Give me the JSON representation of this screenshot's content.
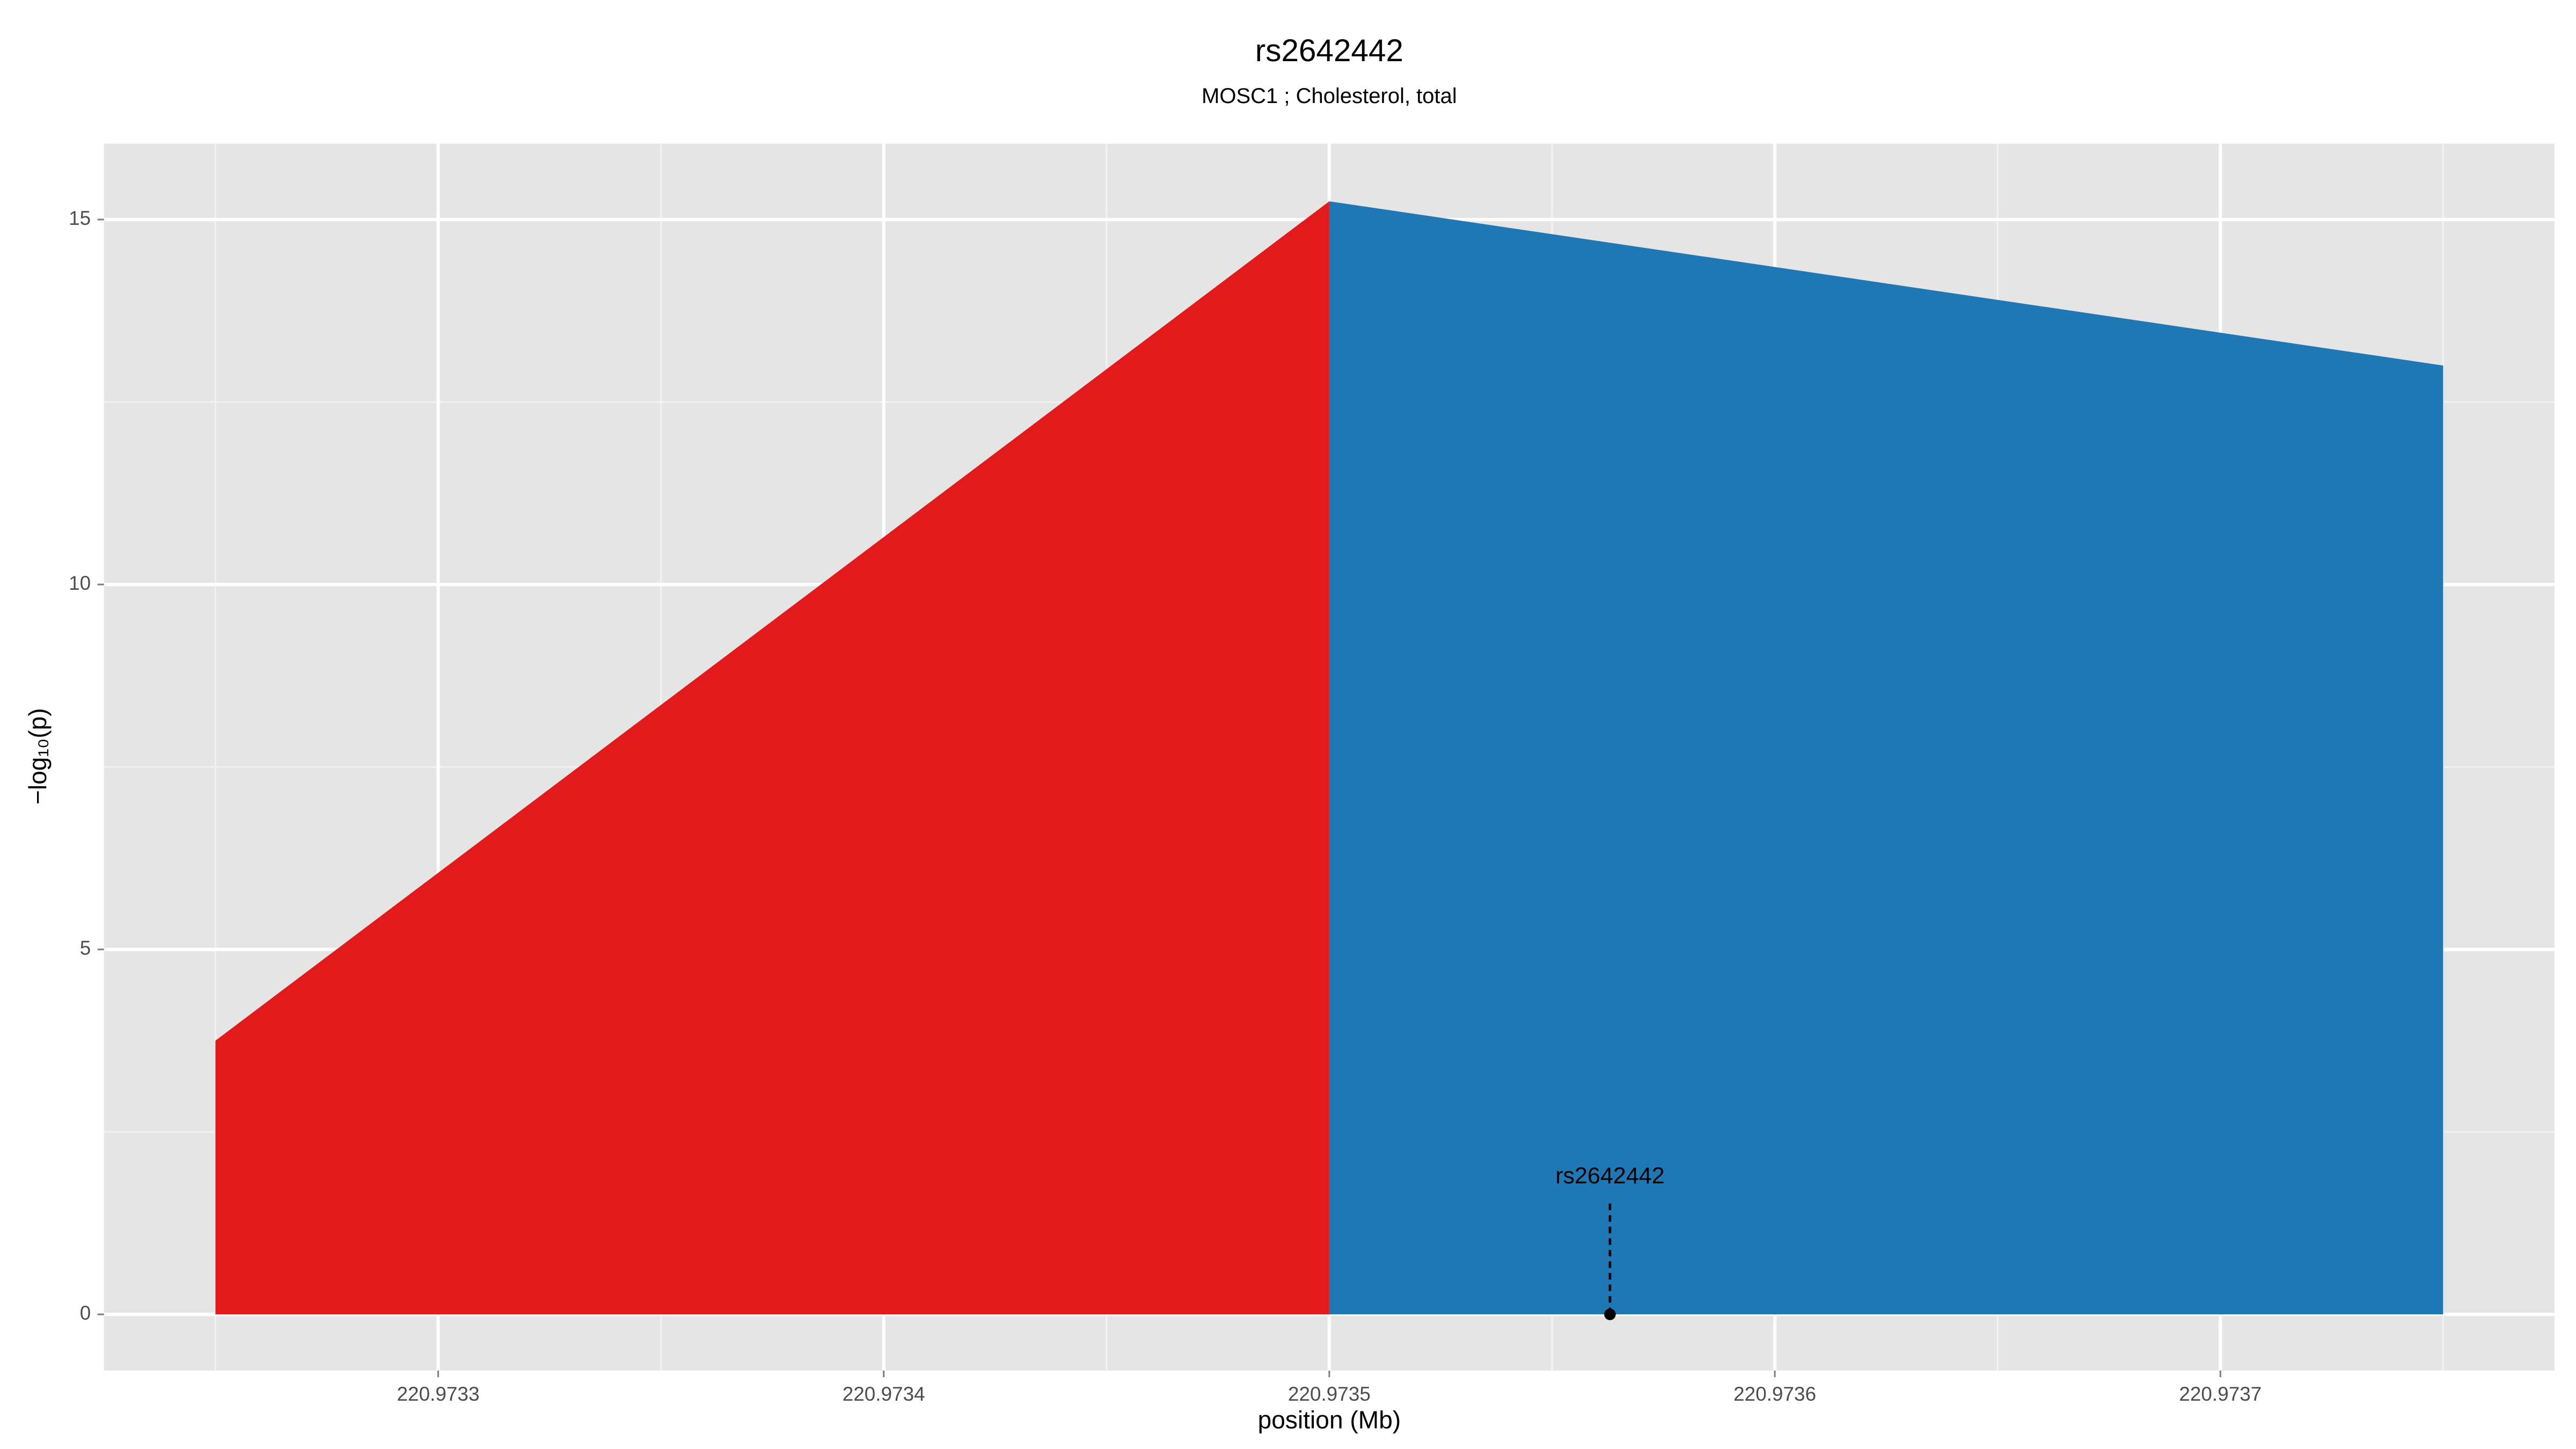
{
  "chart_data": {
    "type": "area",
    "title": "rs2642442",
    "subtitle": "MOSC1 ; Cholesterol, total",
    "xlabel": "position (Mb)",
    "ylabel": "−log₁₀(p)",
    "series": [
      {
        "color": "#e31a1c",
        "x": [
          220.97325,
          220.9735
        ],
        "values": [
          3.75,
          15.25
        ]
      },
      {
        "color": "#1f78b4",
        "x": [
          220.9735,
          220.97375
        ],
        "values": [
          15.25,
          13.0
        ]
      }
    ],
    "annotation": {
      "label": "rs2642442",
      "x": 220.973563,
      "y": 0,
      "label_y": 1.88
    },
    "xlim": [
      220.973225,
      220.973775
    ],
    "ylim": [
      -0.77,
      16.04
    ],
    "xticks": [
      220.9733,
      220.9734,
      220.9735,
      220.9736,
      220.9737
    ],
    "yticks": [
      0,
      5,
      10,
      15
    ],
    "xminorticks": [
      220.97325,
      220.97335,
      220.97345,
      220.97355,
      220.97365,
      220.97375
    ],
    "yminorticks": [
      2.5,
      7.5,
      12.5
    ],
    "grid": true
  }
}
